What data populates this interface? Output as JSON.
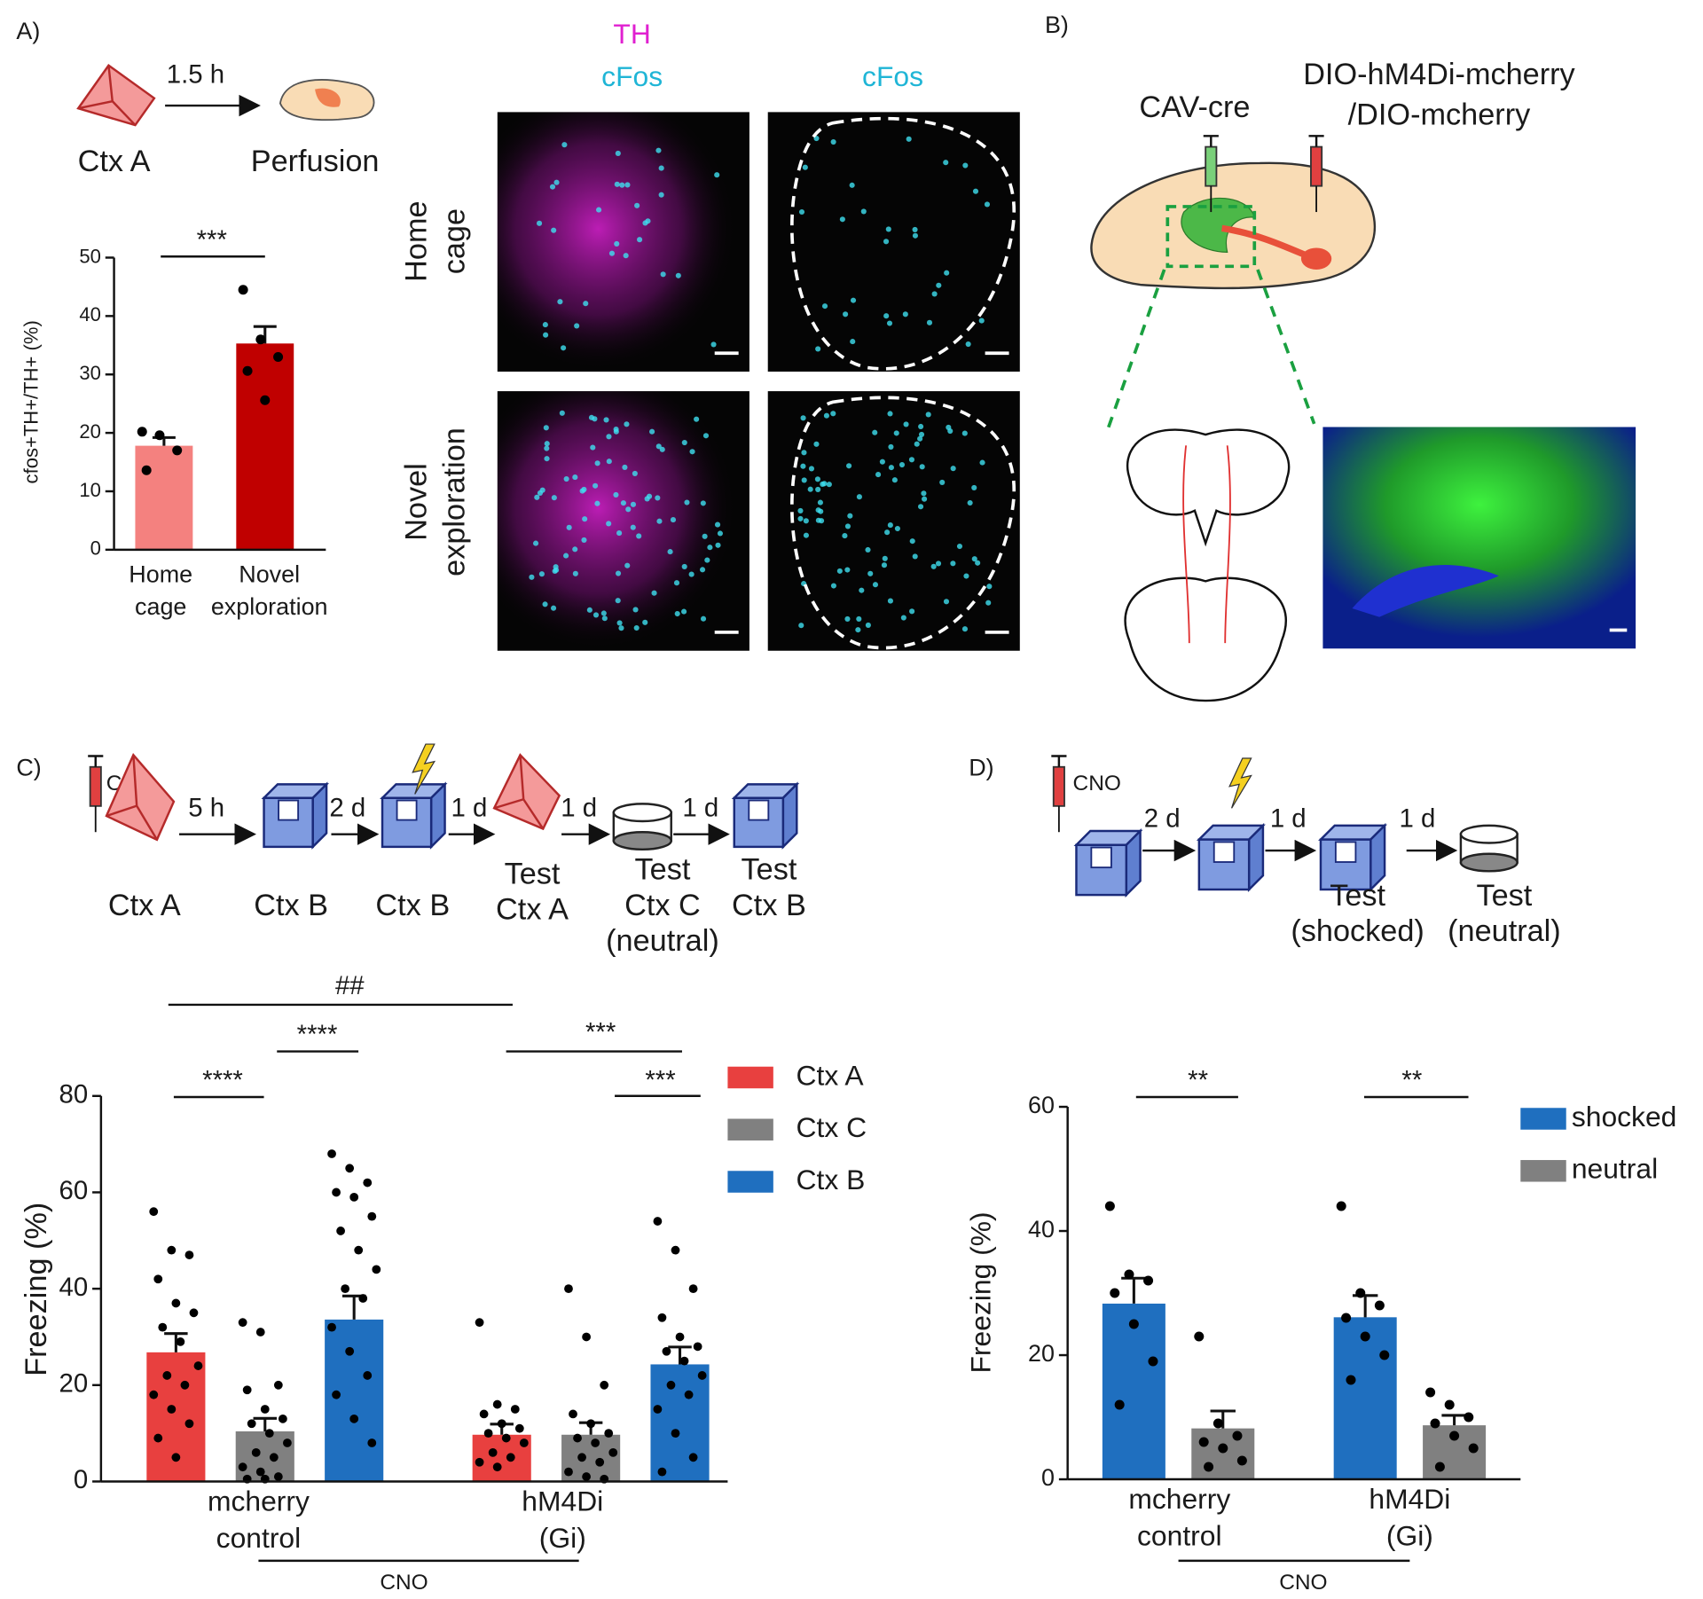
{
  "panel_labels": [
    "A)",
    "B)",
    "C)",
    "D)"
  ],
  "panel_a": {
    "interval": "1.5 h",
    "context": "Ctx A",
    "endpoint": "Perfusion",
    "image_headers": [
      [
        "TH",
        "cFos"
      ],
      [
        "cFos"
      ]
    ],
    "row_labels": [
      [
        "Home",
        "cage"
      ],
      [
        "Novel",
        "exploration"
      ]
    ]
  },
  "panel_b": {
    "virus_1": "CAV-cre",
    "virus_2": [
      "DIO-hM4Di-mcherry",
      "/DIO-mcherry"
    ]
  },
  "panel_c_timeline": {
    "drug": "CNO",
    "intervals": [
      "5 h",
      "2 d",
      "1 d",
      "1 d",
      "1 d"
    ],
    "labels": [
      [
        "Ctx A"
      ],
      [
        "Ctx B"
      ],
      [
        "Ctx B"
      ],
      [
        "Test",
        "Ctx A"
      ],
      [
        "Test",
        "Ctx C",
        "(neutral)"
      ],
      [
        "Test",
        "Ctx B"
      ]
    ]
  },
  "panel_d_timeline": {
    "drug": "CNO",
    "intervals": [
      "2 d",
      "1 d",
      "1 d"
    ],
    "labels": [
      [
        "Test",
        "(shocked)"
      ],
      [
        "Test",
        "(neutral)"
      ]
    ]
  },
  "chart_data": [
    {
      "type": "bar",
      "ylabel": "cfos+TH+/TH+ (%)",
      "categories": [
        [
          "Home",
          "cage"
        ],
        [
          "Novel",
          "exploration"
        ]
      ],
      "values": [
        17.8,
        35.3
      ],
      "errors": [
        1.4,
        2.9
      ],
      "colors": [
        "#f4817f",
        "#c00000"
      ],
      "points": [
        [
          20.2,
          19.6,
          17,
          13.6
        ],
        [
          44.5,
          36,
          33,
          30.6,
          25.6
        ]
      ],
      "ylim": [
        0,
        50
      ],
      "yticks": [
        0,
        10,
        20,
        30,
        40,
        50
      ],
      "annotations": [
        "***"
      ]
    },
    {
      "type": "bar",
      "ylabel": "Freezing (%)",
      "categories": [
        [
          "mcherry",
          "control"
        ],
        [
          "hM4Di",
          "(Gi)"
        ]
      ],
      "group_label": "CNO",
      "series": [
        {
          "name": "Ctx A",
          "color": "#e8403f",
          "values": [
            26.8,
            9.7
          ],
          "errors": [
            3.9,
            2.2
          ],
          "points": [
            [
              56,
              48,
              47,
              42,
              37,
              35,
              32,
              29,
              24,
              22,
              20,
              18,
              15,
              12,
              9,
              5
            ],
            [
              33,
              16,
              15,
              14,
              12,
              11,
              10,
              9,
              8,
              6,
              5,
              4,
              3
            ]
          ]
        },
        {
          "name": "Ctx C",
          "color": "#808080",
          "values": [
            10.4,
            9.7
          ],
          "errors": [
            2.7,
            2.5
          ],
          "points": [
            [
              33,
              31,
              20,
              19,
              15,
              13,
              12,
              10,
              8,
              6,
              5,
              3,
              2,
              1,
              0.5,
              0.5
            ],
            [
              40,
              30,
              20,
              14,
              12,
              10,
              9,
              8,
              6,
              5,
              4,
              2,
              1,
              0.5
            ]
          ]
        },
        {
          "name": "Ctx B",
          "color": "#1f6fbf",
          "values": [
            33.6,
            24.3
          ],
          "errors": [
            4.9,
            3.6
          ],
          "points": [
            [
              68,
              65,
              62,
              60,
              59,
              55,
              52,
              48,
              44,
              40,
              38,
              32,
              27,
              22,
              18,
              13,
              8
            ],
            [
              54,
              48,
              40,
              34,
              30,
              28,
              27,
              25,
              22,
              20,
              18,
              15,
              10,
              5,
              2
            ]
          ]
        }
      ],
      "ylim": [
        0,
        80
      ],
      "yticks": [
        0,
        20,
        40,
        60,
        80
      ],
      "annotations": [
        "##",
        "****",
        "****",
        "***",
        "***"
      ]
    },
    {
      "type": "bar",
      "ylabel": "Freezing (%)",
      "categories": [
        [
          "mcherry",
          "control"
        ],
        [
          "hM4Di",
          "(Gi)"
        ]
      ],
      "group_label": "CNO",
      "series": [
        {
          "name": "shocked",
          "color": "#1f6fbf",
          "values": [
            28.3,
            26.1
          ],
          "errors": [
            4.1,
            3.5
          ],
          "points": [
            [
              44,
              33,
              32,
              30,
              25,
              19,
              12
            ],
            [
              44,
              30,
              28,
              26,
              23,
              20,
              16
            ]
          ]
        },
        {
          "name": "neutral",
          "color": "#808080",
          "values": [
            8.2,
            8.7
          ],
          "errors": [
            2.8,
            1.6
          ],
          "points": [
            [
              23,
              9,
              7,
              6,
              5,
              3,
              2
            ],
            [
              14,
              12,
              10,
              9,
              7,
              5,
              2
            ]
          ]
        }
      ],
      "ylim": [
        0,
        60
      ],
      "yticks": [
        0,
        20,
        40,
        60
      ],
      "annotations": [
        "**",
        "**"
      ]
    }
  ]
}
